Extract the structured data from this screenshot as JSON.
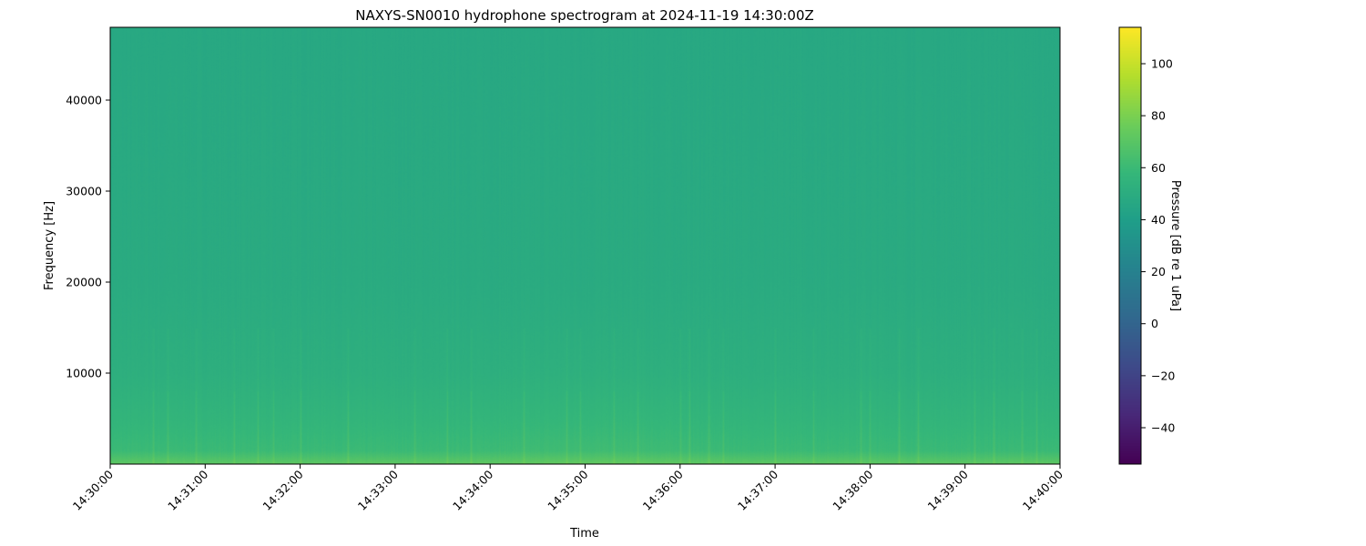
{
  "chart_data": {
    "type": "heatmap",
    "title": "NAXYS-SN0010 hydrophone spectrogram at 2024-11-19 14:30:00Z",
    "xlabel": "Time",
    "ylabel": "Frequency [Hz]",
    "x_range": [
      "14:30:00",
      "14:40:00"
    ],
    "x_ticks": [
      "14:30:00",
      "14:31:00",
      "14:32:00",
      "14:33:00",
      "14:34:00",
      "14:35:00",
      "14:36:00",
      "14:37:00",
      "14:38:00",
      "14:39:00",
      "14:40:00"
    ],
    "ylim": [
      0,
      48000
    ],
    "y_ticks": [
      10000,
      20000,
      30000,
      40000
    ],
    "y_tick_labels": [
      "10000",
      "20000",
      "30000",
      "40000"
    ],
    "colormap": "viridis",
    "colorbar": {
      "label": "Pressure [dB re 1 uPa]",
      "range": [
        -54,
        114
      ],
      "ticks": [
        -40,
        -20,
        0,
        20,
        40,
        60,
        80,
        100
      ],
      "tick_labels": [
        "−40",
        "−20",
        "0",
        "20",
        "40",
        "60",
        "80",
        "100"
      ]
    },
    "level_profile_db": [
      {
        "freq_hz": 0,
        "db": 72
      },
      {
        "freq_hz": 500,
        "db": 68
      },
      {
        "freq_hz": 1500,
        "db": 60
      },
      {
        "freq_hz": 5000,
        "db": 56
      },
      {
        "freq_hz": 10000,
        "db": 52
      },
      {
        "freq_hz": 20000,
        "db": 49
      },
      {
        "freq_hz": 48000,
        "db": 47
      }
    ],
    "transient_minutes": [
      0.45,
      0.6,
      0.9,
      1.3,
      1.55,
      1.72,
      2.0,
      2.5,
      3.2,
      3.55,
      3.8,
      4.35,
      4.8,
      4.95,
      5.3,
      5.55,
      6.0,
      6.1,
      6.3,
      6.45,
      7.0,
      7.4,
      7.9,
      8.0,
      8.3,
      8.5,
      9.1,
      9.3,
      9.6,
      9.75
    ]
  },
  "colors": {
    "axis": "#000000",
    "background": "#ffffff"
  }
}
